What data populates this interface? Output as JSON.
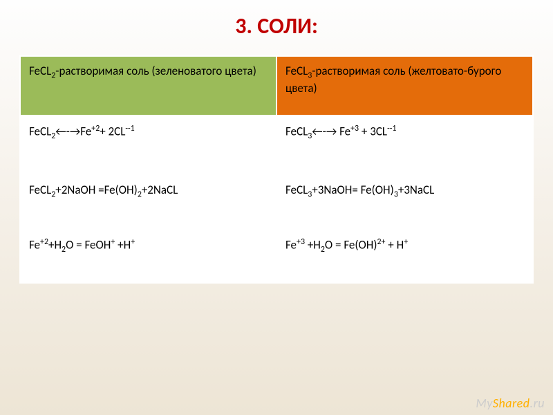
{
  "title": "3.  СОЛИ:",
  "title_color": "#c00000",
  "title_fontsize": 32,
  "background_gradient": [
    "#fefefe",
    "#f5f0e8",
    "#ede5d5"
  ],
  "table": {
    "col_widths": [
      "50%",
      "50%"
    ],
    "border_color": "#ffffff",
    "header_bg_left": "#9bbb59",
    "header_bg_right": "#e46c0a",
    "body_bg": "#ffffff",
    "font_size": 17,
    "rows": [
      {
        "left": "FeCL<sub>2</sub>-растворимая соль (зеленоватого цвета)",
        "right": "FeCL<sub>3</sub>-растворимая соль (желтовато-бурого цвета)"
      },
      {
        "left": "FeCL<sub>2</sub>←-→Fe<sup>+2</sup>+ 2CL<sup>--1</sup>",
        "right": "FeCL<sub>3</sub>←-→ Fe<sup>+3</sup> + 3CL<sup>--1</sup>"
      },
      {
        "left": "FeCL<sub>2</sub>+2NaOH =Fe(OH)<sub>2</sub>+2NaCL",
        "right": "FeCL<sub>3</sub>+3NaOH= Fe(OH)<sub>3</sub>+3NaCL"
      },
      {
        "left": "Fe<sup>+2</sup>+H<sub>2</sub>O = FeOH<sup>+</sup> +H<sup>+</sup>",
        "right": "Fe<sup>+3</sup> +H<sub>2</sub>O = Fe(OH)<sup>2+</sup> + H<sup>+</sup>"
      }
    ]
  },
  "watermark": {
    "prefix": "My",
    "accent": "Shared",
    "suffix": ".ru",
    "prefix_color": "#cccccc",
    "accent_color": "#ffb000",
    "fontsize": 18
  }
}
